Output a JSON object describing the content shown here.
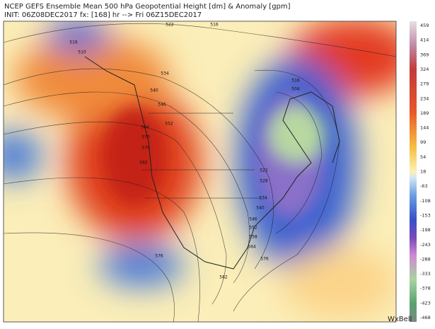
{
  "header": {
    "title": "NCEP GEFS Ensemble Mean 500 hPa Geopotential Height [dm] & Anomaly [gpm]",
    "init": "INIT: 06Z08DEC2017 fx: [168] hr --> Fri 06Z15DEC2017"
  },
  "colorbar": {
    "labels": [
      459,
      414,
      369,
      324,
      279,
      234,
      189,
      144,
      99,
      54,
      18,
      -63,
      -108,
      -153,
      -198,
      -243,
      -288,
      -333,
      -378,
      -423,
      -468
    ]
  },
  "contour_labels": [
    "516",
    "510",
    "522",
    "516",
    "516",
    "504",
    "534",
    "540",
    "546",
    "552",
    "564",
    "570",
    "576",
    "582",
    "522",
    "528",
    "534",
    "540",
    "546",
    "552",
    "558",
    "564",
    "576",
    "582",
    "576"
  ],
  "brand": "WxBell"
}
